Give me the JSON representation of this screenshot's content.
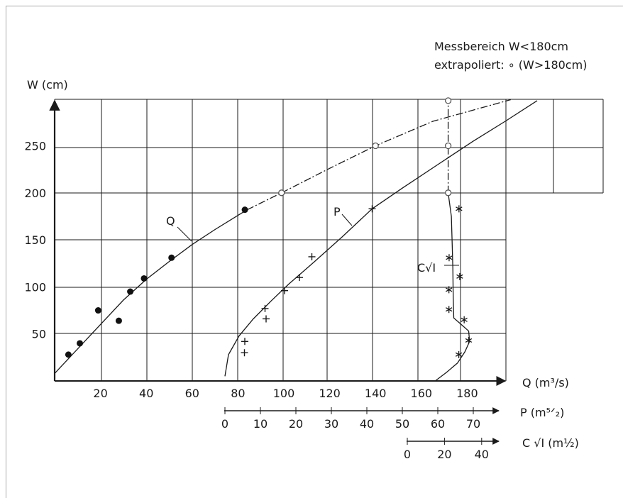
{
  "chart_data": {
    "type": "scatter",
    "title": "",
    "legend": {
      "measured": "Messbereich W<180cm",
      "extrapolated": "extrapoliert: ∘ (W>180cm)"
    },
    "y_axis": {
      "label": "W (cm)",
      "ticks": [
        50,
        100,
        150,
        200,
        250
      ],
      "range": [
        0,
        300
      ]
    },
    "x_axes": [
      {
        "id": "Q",
        "label": "Q (m³/s)",
        "ticks": [
          20,
          40,
          60,
          80,
          100,
          120,
          140,
          160,
          180
        ],
        "range": [
          0,
          195
        ]
      },
      {
        "id": "P",
        "label": "P (m⁵ᐟ₂)",
        "ticks": [
          0,
          10,
          20,
          30,
          40,
          50,
          60,
          70
        ],
        "range": [
          0,
          72
        ]
      },
      {
        "id": "C",
        "label": "C √I (m½)",
        "ticks": [
          0,
          20,
          40
        ],
        "range": [
          0,
          44
        ]
      }
    ],
    "curve_labels": {
      "Q": "Q",
      "P": "P",
      "C": "C√I"
    },
    "series": [
      {
        "name": "Q",
        "axis": "Q",
        "marker": "dot",
        "points": [
          [
            6,
            28
          ],
          [
            11,
            40
          ],
          [
            19,
            75
          ],
          [
            28,
            64
          ],
          [
            33,
            95
          ],
          [
            39,
            109
          ],
          [
            51,
            131
          ],
          [
            83,
            182
          ]
        ]
      },
      {
        "name": "P",
        "axis": "P",
        "marker": "plus",
        "points": [
          [
            5.5,
            30
          ],
          [
            5.6,
            42
          ],
          [
            11.3,
            77
          ],
          [
            11.6,
            66
          ],
          [
            16.8,
            96
          ],
          [
            21,
            110
          ],
          [
            24.5,
            132
          ],
          [
            41.5,
            183
          ]
        ]
      },
      {
        "name": "C√I",
        "axis": "C",
        "marker": "asterisk",
        "points": [
          [
            27.7,
            28
          ],
          [
            33,
            43
          ],
          [
            30.6,
            65
          ],
          [
            22.4,
            76
          ],
          [
            22.4,
            97
          ],
          [
            28.2,
            111
          ],
          [
            22.5,
            131
          ],
          [
            27.8,
            183
          ]
        ]
      },
      {
        "name": "Q extrapoliert",
        "axis": "Q",
        "marker": "circle",
        "points": [
          [
            99,
            200
          ],
          [
            140,
            250
          ]
        ]
      },
      {
        "name": "C√I extrapoliert",
        "axis": "C",
        "marker": "circle",
        "points": [
          [
            22,
            200
          ],
          [
            22,
            250
          ],
          [
            22,
            298
          ]
        ]
      }
    ],
    "fit_curves": {
      "Q": [
        [
          0,
          8
        ],
        [
          10,
          34
        ],
        [
          20,
          60
        ],
        [
          30,
          86
        ],
        [
          40,
          108
        ],
        [
          50,
          127
        ],
        [
          60,
          145
        ],
        [
          70,
          161
        ],
        [
          80,
          176
        ],
        [
          84,
          182
        ],
        [
          99,
          200
        ],
        [
          120,
          226
        ],
        [
          140,
          250
        ],
        [
          165,
          276
        ],
        [
          199,
          299
        ]
      ],
      "P": [
        [
          0,
          5
        ],
        [
          1,
          28
        ],
        [
          4,
          48
        ],
        [
          8,
          66
        ],
        [
          13,
          85
        ],
        [
          18,
          103
        ],
        [
          25,
          126
        ],
        [
          33,
          153
        ],
        [
          41.5,
          183
        ],
        [
          50,
          205
        ],
        [
          60,
          230
        ],
        [
          70,
          255
        ],
        [
          79,
          276
        ],
        [
          88,
          298
        ]
      ],
      "C": [
        [
          15,
          0
        ],
        [
          21,
          9
        ],
        [
          27,
          19
        ],
        [
          31,
          31
        ],
        [
          33.5,
          42
        ],
        [
          33,
          53
        ],
        [
          29,
          60
        ],
        [
          25,
          67
        ],
        [
          24.7,
          90
        ],
        [
          24.5,
          120
        ],
        [
          24.1,
          150
        ],
        [
          23.7,
          175
        ],
        [
          22,
          200
        ],
        [
          22,
          298
        ]
      ]
    }
  }
}
